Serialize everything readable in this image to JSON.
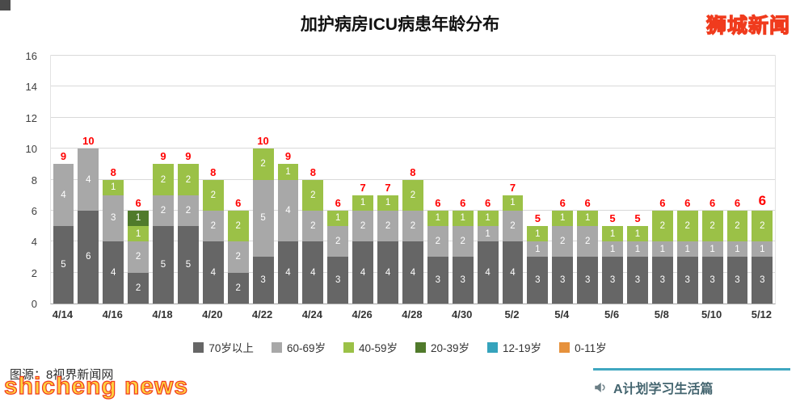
{
  "page": {
    "title": "加护病房ICU病患年龄分布",
    "watermark_top_right": "狮城新闻",
    "watermark_bottom_left": "shicheng news",
    "source_caption": "图源：8视界新闻网",
    "footer_brand": "A计划学习生活篇",
    "colors": {
      "wm-fill": "#ffd23f",
      "wm-stroke": "#f03b1d",
      "accent-teal": "#3fa7c0",
      "brand-text": "#44656f",
      "caption-text": "#2e2e2e"
    }
  },
  "chart_data": {
    "type": "bar",
    "stacked": true,
    "title": "加护病房ICU病患年龄分布",
    "categories": [
      "4/14",
      "4/15",
      "4/16",
      "4/17",
      "4/18",
      "4/19",
      "4/20",
      "4/21",
      "4/22",
      "4/23",
      "4/24",
      "4/25",
      "4/26",
      "4/27",
      "4/28",
      "4/29",
      "4/30",
      "5/1",
      "5/2",
      "5/3",
      "5/4",
      "5/5",
      "5/6",
      "5/7",
      "5/8",
      "5/9",
      "5/10",
      "5/11",
      "5/12"
    ],
    "x_tick_labels": [
      "4/14",
      "4/16",
      "4/18",
      "4/20",
      "4/22",
      "4/24",
      "4/26",
      "4/28",
      "4/30",
      "5/2",
      "5/4",
      "5/6",
      "5/8",
      "5/10",
      "5/12"
    ],
    "series": [
      {
        "name": "70岁以上",
        "color": "#666666",
        "values": [
          5,
          6,
          4,
          2,
          5,
          5,
          4,
          2,
          3,
          4,
          4,
          3,
          4,
          4,
          4,
          3,
          3,
          4,
          4,
          3,
          3,
          3,
          3,
          3,
          3,
          3,
          3,
          3,
          3
        ]
      },
      {
        "name": "60-69岁",
        "color": "#a8a8a8",
        "values": [
          4,
          4,
          3,
          2,
          2,
          2,
          2,
          2,
          5,
          4,
          2,
          2,
          2,
          2,
          2,
          2,
          2,
          1,
          2,
          1,
          2,
          2,
          1,
          1,
          1,
          1,
          1,
          1,
          1
        ]
      },
      {
        "name": "40-59岁",
        "color": "#9bc147",
        "values": [
          0,
          0,
          1,
          1,
          2,
          2,
          2,
          2,
          2,
          1,
          2,
          1,
          1,
          1,
          2,
          1,
          1,
          1,
          1,
          1,
          1,
          1,
          1,
          1,
          2,
          2,
          2,
          2,
          2
        ]
      },
      {
        "name": "20-39岁",
        "color": "#507a2b",
        "values": [
          0,
          0,
          0,
          1,
          0,
          0,
          0,
          0,
          0,
          0,
          0,
          0,
          0,
          0,
          0,
          0,
          0,
          0,
          0,
          0,
          0,
          0,
          0,
          0,
          0,
          0,
          0,
          0,
          0
        ]
      },
      {
        "name": "12-19岁",
        "color": "#35a3bc",
        "values": [
          0,
          0,
          0,
          0,
          0,
          0,
          0,
          0,
          0,
          0,
          0,
          0,
          0,
          0,
          0,
          0,
          0,
          0,
          0,
          0,
          0,
          0,
          0,
          0,
          0,
          0,
          0,
          0,
          0
        ]
      },
      {
        "name": "0-11岁",
        "color": "#e6913c",
        "values": [
          0,
          0,
          0,
          0,
          0,
          0,
          0,
          0,
          0,
          0,
          0,
          0,
          0,
          0,
          0,
          0,
          0,
          0,
          0,
          0,
          0,
          0,
          0,
          0,
          0,
          0,
          0,
          0,
          0
        ]
      }
    ],
    "totals": [
      9,
      10,
      8,
      6,
      9,
      9,
      8,
      6,
      10,
      9,
      8,
      6,
      7,
      7,
      8,
      6,
      6,
      6,
      7,
      5,
      6,
      6,
      5,
      5,
      6,
      6,
      6,
      6,
      6
    ],
    "ylim": [
      0,
      16
    ],
    "yticks": [
      0,
      2,
      4,
      6,
      8,
      10,
      12,
      14,
      16
    ],
    "grid": true,
    "legend_position": "bottom",
    "total_label_color": "#ff0000",
    "last_total_bold": true
  }
}
